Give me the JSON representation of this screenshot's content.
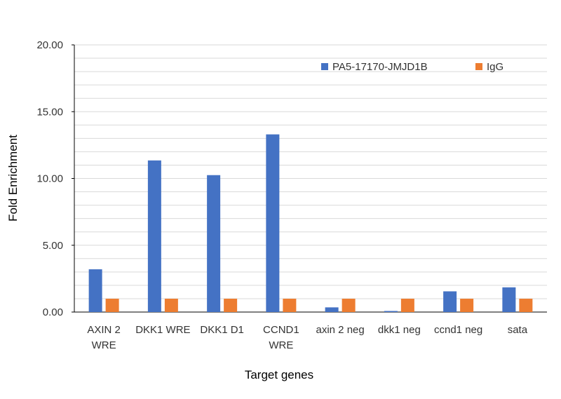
{
  "chart_data": {
    "type": "bar",
    "title": "",
    "xlabel": "Target genes",
    "ylabel": "Fold Enrichment",
    "ylim": [
      0,
      20
    ],
    "yticks": [
      "0.00",
      "5.00",
      "10.00",
      "15.00",
      "20.00"
    ],
    "grid": "horizontal-minor",
    "legend_position": "top-right",
    "categories": [
      [
        "AXIN 2",
        "WRE"
      ],
      [
        "DKK1 WRE"
      ],
      [
        "DKK1 D1"
      ],
      [
        "CCND1",
        "WRE"
      ],
      [
        "axin 2 neg"
      ],
      [
        "dkk1 neg"
      ],
      [
        "ccnd1 neg"
      ],
      [
        "sata"
      ]
    ],
    "series": [
      {
        "name": "PA5-17170-JMJD1B",
        "color": "#4472C4",
        "values": [
          3.2,
          11.35,
          10.25,
          13.3,
          0.35,
          0.08,
          1.55,
          1.85
        ]
      },
      {
        "name": "IgG",
        "color": "#ED7D31",
        "values": [
          1.0,
          1.0,
          1.0,
          1.0,
          1.0,
          1.0,
          1.0,
          1.0
        ]
      }
    ]
  }
}
